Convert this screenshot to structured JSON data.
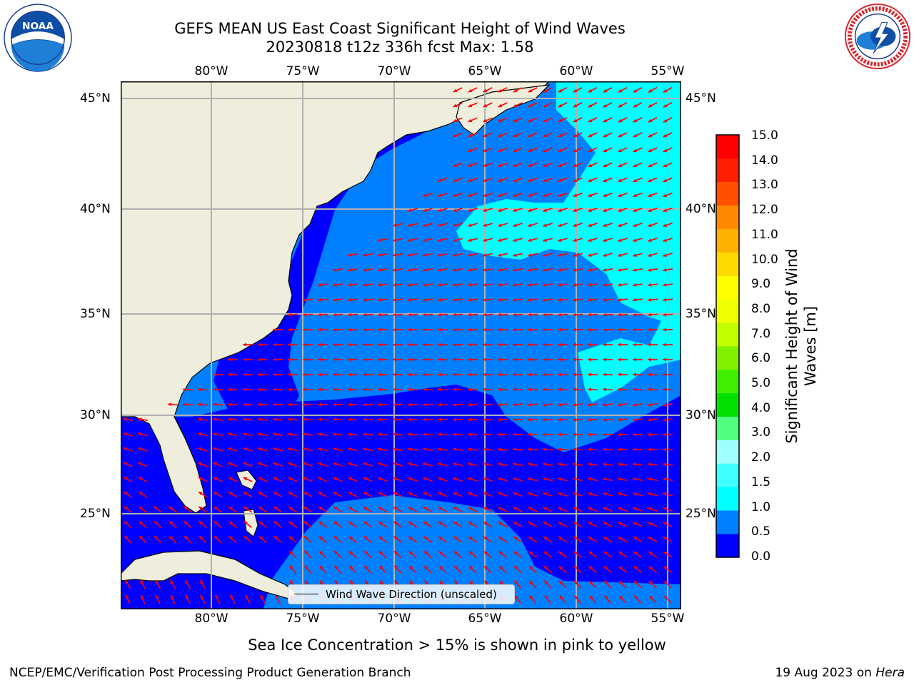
{
  "header": {
    "title_line1": "GEFS MEAN US East Coast Significant Height of Wind Waves",
    "title_line2": "20230818 t12z 336h fcst   Max: 1.58"
  },
  "logos": {
    "left": "noaa-logo",
    "right": "nws-logo"
  },
  "map": {
    "lon_ticks": [
      "80°W",
      "75°W",
      "70°W",
      "65°W",
      "60°W",
      "55°W"
    ],
    "lat_ticks": [
      "45°N",
      "40°N",
      "35°N",
      "30°N",
      "25°N"
    ],
    "lon_range": [
      -85,
      -54.3
    ],
    "lat_range": [
      20.3,
      45.8
    ],
    "colors": {
      "land": "#efeedc",
      "ocean_0_0.5": "#0000ff",
      "ocean_0.5_1.0": "#0080ff",
      "ocean_1.0_1.5": "#00ffff",
      "grid": "#b0b0b0",
      "arrow": "#ff0000",
      "coast": "#000000"
    }
  },
  "legend": {
    "label": "Wind Wave Direction (unscaled)"
  },
  "colorbar": {
    "label": "Significant Height of Wind Waves [m]",
    "ticks": [
      "15.0",
      "14.0",
      "13.0",
      "12.0",
      "11.0",
      "10.0",
      "9.0",
      "8.0",
      "7.0",
      "6.0",
      "5.0",
      "4.0",
      "3.0",
      "2.0",
      "1.5",
      "1.0",
      "0.5",
      "0.0"
    ],
    "colors_bottom_to_top": [
      "#0000ff",
      "#0080ff",
      "#00ffff",
      "#40ffff",
      "#a0ffff",
      "#50ff80",
      "#00e000",
      "#40ee00",
      "#80f000",
      "#c0ff00",
      "#f0ff00",
      "#ffff00",
      "#ffd800",
      "#ffb000",
      "#ff8800",
      "#ff5000",
      "#ff2000",
      "#ff0000"
    ]
  },
  "footer": {
    "sea_ice_note": "Sea Ice Concentration > 15% is shown in pink to yellow",
    "left": "NCEP/EMC/Verification Post Processing Product Generation Branch",
    "date": "19 Aug 2023 on",
    "host": "Hera"
  }
}
